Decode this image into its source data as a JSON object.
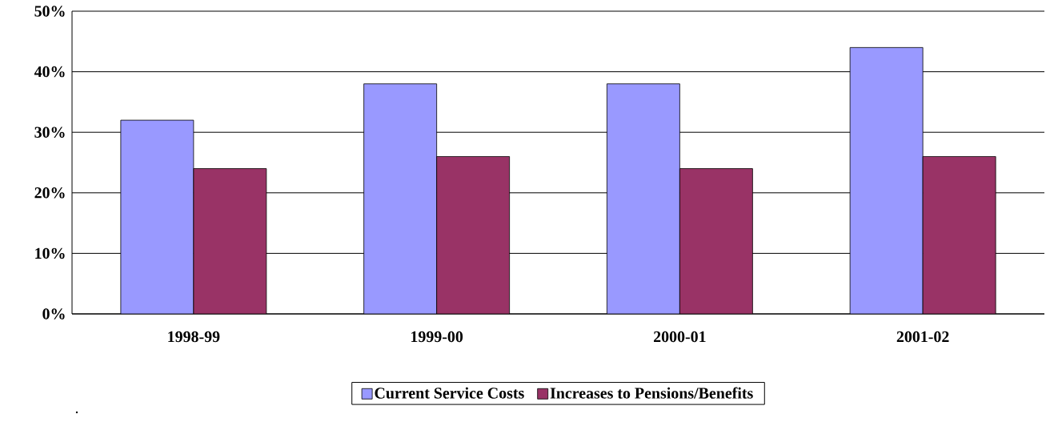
{
  "chart_data": {
    "type": "bar",
    "categories": [
      "1998-99",
      "1999-00",
      "2000-01",
      "2001-02"
    ],
    "series": [
      {
        "name": "Current Service Costs",
        "color": "#9999ff",
        "values": [
          32,
          38,
          38,
          44
        ]
      },
      {
        "name": "Increases to Pensions/Benefits",
        "color": "#993366",
        "values": [
          24,
          26,
          24,
          26
        ]
      }
    ],
    "ylim": [
      0,
      50
    ],
    "yticks": [
      {
        "value": 0,
        "label": "0%"
      },
      {
        "value": 10,
        "label": "10%"
      },
      {
        "value": 20,
        "label": "20%"
      },
      {
        "value": 30,
        "label": "30%"
      },
      {
        "value": 40,
        "label": "40%"
      },
      {
        "value": 50,
        "label": "50%"
      }
    ],
    "grid": "y",
    "legend": "bottom",
    "annotations": [
      "."
    ]
  }
}
